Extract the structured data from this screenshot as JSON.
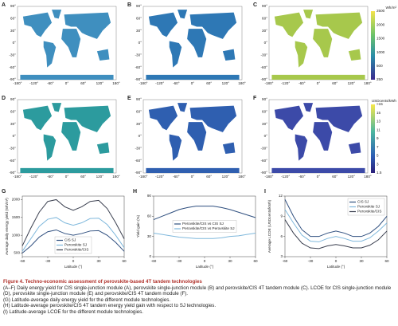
{
  "maps": [
    {
      "label": "A"
    },
    {
      "label": "B"
    },
    {
      "label": "C"
    },
    {
      "label": "D"
    },
    {
      "label": "E"
    },
    {
      "label": "F"
    }
  ],
  "map_axes": {
    "lat_ticks": [
      "90°",
      "60°",
      "30°",
      "0°",
      "-30°",
      "-60°",
      "-90°"
    ],
    "lon_ticks": [
      "-180°",
      "-120°",
      "-60°",
      "0°",
      "60°",
      "120°",
      "180°"
    ]
  },
  "colorbars": [
    {
      "unit": "Wh/m²",
      "ticks": [
        2500,
        2000,
        1500,
        1000,
        500,
        250
      ]
    },
    {
      "unit": "USDcents/kWh",
      "ticks": [
        ">15",
        15,
        13,
        11,
        9,
        7,
        5,
        3,
        1.5
      ]
    }
  ],
  "chart_data": [
    {
      "type": "line",
      "label": "G",
      "xlabel": "Latitude (°)",
      "ylabel": "Average daily energy yield (Wh/m²)",
      "x": [
        -60,
        -50,
        -40,
        -30,
        -20,
        -10,
        0,
        10,
        20,
        30,
        40,
        50,
        60
      ],
      "xlim": [
        -60,
        60
      ],
      "xticks": [
        -60,
        -30,
        0,
        30,
        60
      ],
      "ylim": [
        400,
        2100
      ],
      "yticks": [
        500,
        1000,
        1500,
        2000
      ],
      "legend": "lower center",
      "series": [
        {
          "name": "CIS SJ",
          "color": "#2f4f7f",
          "values": [
            500,
            700,
            950,
            1100,
            1150,
            1050,
            1000,
            1050,
            1120,
            1130,
            1000,
            800,
            550
          ]
        },
        {
          "name": "Perovskite SJ",
          "color": "#7fb8dc",
          "values": [
            550,
            900,
            1250,
            1450,
            1500,
            1350,
            1280,
            1350,
            1470,
            1480,
            1300,
            1000,
            650
          ]
        },
        {
          "name": "Perovskite/CIS",
          "color": "#3a3f4f",
          "values": [
            700,
            1200,
            1650,
            1950,
            2000,
            1800,
            1700,
            1800,
            1950,
            1980,
            1750,
            1350,
            900
          ]
        }
      ]
    },
    {
      "type": "line",
      "label": "H",
      "xlabel": "Latitude (°)",
      "ylabel": "Yield gain (%)",
      "x": [
        -60,
        -50,
        -40,
        -30,
        -20,
        -10,
        0,
        10,
        20,
        30,
        40,
        50,
        60
      ],
      "xlim": [
        -60,
        60
      ],
      "xticks": [
        -60,
        -30,
        0,
        30,
        60
      ],
      "ylim": [
        0,
        90
      ],
      "yticks": [
        0,
        30,
        60,
        90
      ],
      "legend": "center",
      "series": [
        {
          "name": "Perovskite/CIS vs CIS SJ",
          "color": "#2f4f7f",
          "values": [
            55,
            60,
            65,
            70,
            73,
            75,
            75,
            75,
            73,
            70,
            66,
            62,
            58
          ]
        },
        {
          "name": "Perovskite/CIS vs Perovskite SJ",
          "color": "#7fb8dc",
          "values": [
            35,
            33,
            31,
            29,
            28,
            27,
            27,
            27,
            28,
            30,
            31,
            33,
            35
          ]
        }
      ]
    },
    {
      "type": "line",
      "label": "I",
      "xlabel": "Latitude (°)",
      "ylabel": "Average LCOE (USDcents/kWh)",
      "x": [
        -60,
        -50,
        -40,
        -30,
        -20,
        -10,
        0,
        10,
        20,
        30,
        40,
        50,
        60
      ],
      "xlim": [
        -60,
        60
      ],
      "xticks": [
        -60,
        -30,
        0,
        30,
        60
      ],
      "ylim": [
        3,
        12
      ],
      "yticks": [
        3,
        6,
        9,
        12
      ],
      "legend": "upper right",
      "series": [
        {
          "name": "CIS SJ",
          "color": "#2f4f7f",
          "values": [
            11.5,
            9,
            7,
            6,
            6,
            6.5,
            6.8,
            6.5,
            6,
            6,
            6.5,
            7.5,
            9
          ]
        },
        {
          "name": "Perovskite SJ",
          "color": "#7fb8dc",
          "values": [
            10,
            8,
            6.2,
            5.3,
            5.2,
            5.7,
            6,
            5.7,
            5.3,
            5.3,
            5.8,
            6.8,
            8
          ]
        },
        {
          "name": "Perovskite/CIS",
          "color": "#3a3f4f",
          "values": [
            8.5,
            6.5,
            5,
            4.3,
            4.2,
            4.6,
            4.8,
            4.6,
            4.3,
            4.3,
            4.7,
            5.5,
            6.8
          ]
        }
      ]
    }
  ],
  "caption": {
    "title": "Figure 4. Techno-economic assessment of perovskite-based 4T tandem technologies",
    "lines": [
      "(A–F) Daily energy yield for CIS single-junction module (A), perovskite single-junction module (B) and perovskite/CIS 4T tandem module (C). LCOE for CIS single-junction module (D), perovskite single-junction module (E) and perovskite/CIS 4T tandem module (F).",
      "(G) Latitude-average daily energy yield for the different module technologies.",
      "(H) Latitude-average perovskite/CIS 4T tandem energy yield gain with respect to SJ technologies.",
      "(I) Latitude-average LCOE for the different module technologies."
    ]
  }
}
